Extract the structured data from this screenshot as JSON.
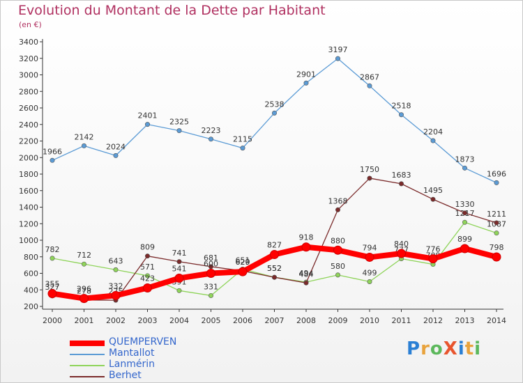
{
  "title": "Evolution du Montant de la Dette par Habitant",
  "unit": "(en €)",
  "brand": {
    "text": "ProXiti",
    "letters": [
      "P",
      "r",
      "o",
      "X",
      "i",
      "t",
      "i"
    ]
  },
  "chart_data": {
    "type": "line",
    "categories": [
      "2000",
      "2001",
      "2002",
      "2003",
      "2004",
      "2005",
      "2006",
      "2007",
      "2008",
      "2009",
      "2010",
      "2011",
      "2012",
      "2013",
      "2014"
    ],
    "ylim": [
      200,
      3400
    ],
    "yticks": [
      200,
      400,
      600,
      800,
      1000,
      1200,
      1400,
      1600,
      1800,
      2000,
      2200,
      2400,
      2600,
      2800,
      3000,
      3200,
      3400
    ],
    "grid": false,
    "legend_position": "bottom-left",
    "series": [
      {
        "name": "QUEMPERVEN",
        "color": "#ff0000",
        "values": [
          355,
          296,
          332,
          423,
          541,
          600,
          620,
          827,
          918,
          880,
          794,
          840,
          776,
          899,
          798
        ]
      },
      {
        "name": "Mantallot",
        "color": "#5b9bd5",
        "values": [
          1966,
          2142,
          2024,
          2401,
          2325,
          2223,
          2115,
          2538,
          2901,
          3197,
          2867,
          2518,
          2204,
          1873,
          1696
        ]
      },
      {
        "name": "Lanmérin",
        "color": "#8fd45a",
        "values": [
          782,
          712,
          643,
          571,
          391,
          331,
          651,
          552,
          494,
          580,
          499,
          777,
          709,
          1217,
          1087
        ]
      },
      {
        "name": "Berhet",
        "color": "#7a2a2a",
        "values": [
          327,
          278,
          275,
          809,
          741,
          681,
          629,
          552,
          484,
          1368,
          1750,
          1683,
          1495,
          1330,
          1211
        ]
      }
    ]
  }
}
